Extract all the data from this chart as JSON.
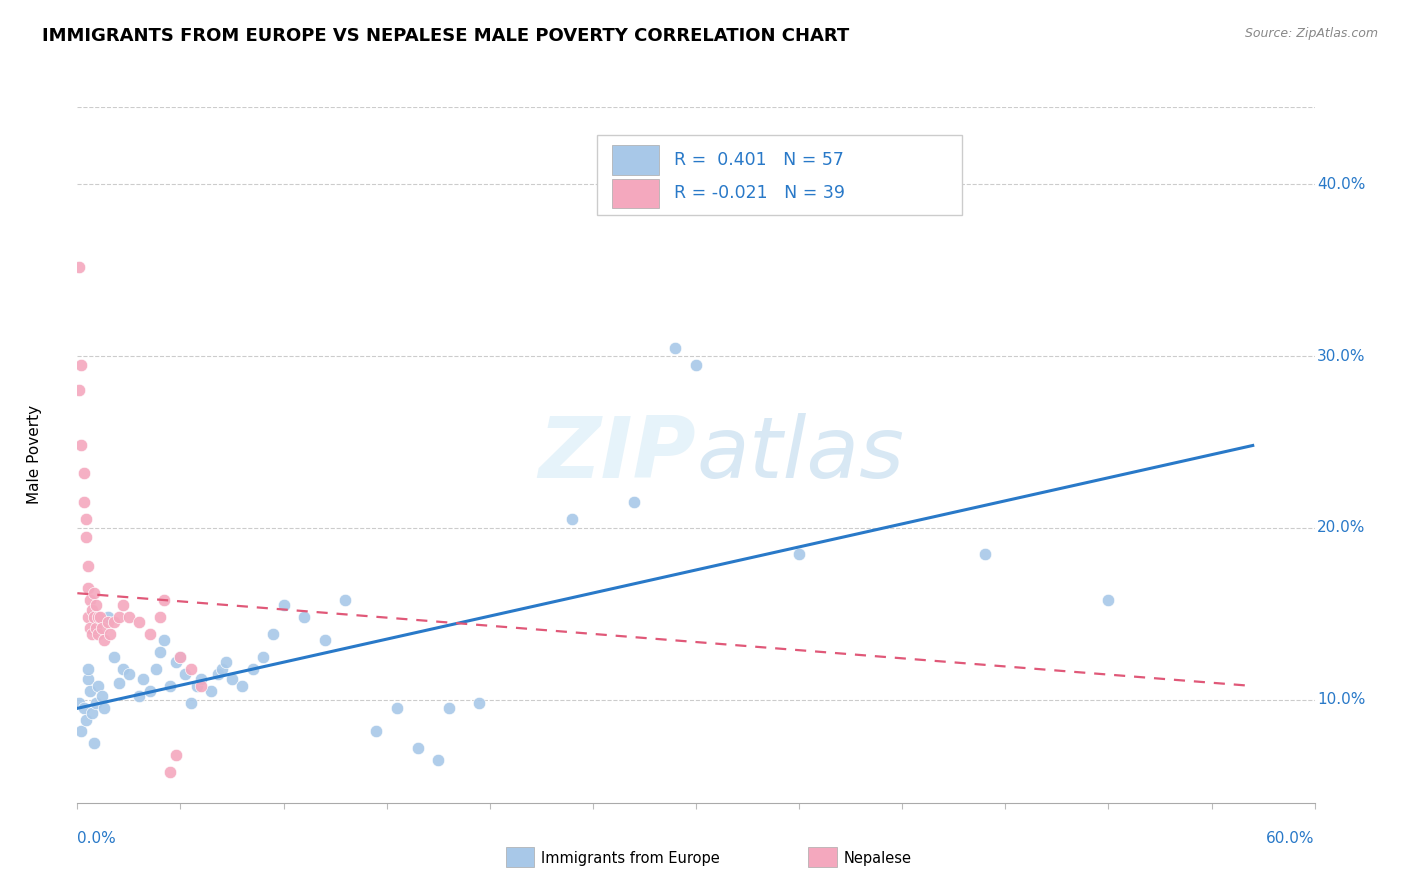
{
  "title": "IMMIGRANTS FROM EUROPE VS NEPALESE MALE POVERTY CORRELATION CHART",
  "source": "Source: ZipAtlas.com",
  "ylabel": "Male Poverty",
  "ylabel_right_ticks": [
    "10.0%",
    "20.0%",
    "30.0%",
    "40.0%"
  ],
  "ylabel_right_vals": [
    0.1,
    0.2,
    0.3,
    0.4
  ],
  "xlim": [
    0.0,
    0.6
  ],
  "ylim": [
    0.04,
    0.445
  ],
  "watermark": "ZIPatlas",
  "blue_color": "#a8c8e8",
  "pink_color": "#f4a8be",
  "blue_line_color": "#2979c8",
  "pink_line_color": "#e05878",
  "blue_scatter": [
    [
      0.001,
      0.098
    ],
    [
      0.002,
      0.082
    ],
    [
      0.003,
      0.095
    ],
    [
      0.004,
      0.088
    ],
    [
      0.005,
      0.112
    ],
    [
      0.005,
      0.118
    ],
    [
      0.006,
      0.105
    ],
    [
      0.007,
      0.092
    ],
    [
      0.008,
      0.075
    ],
    [
      0.009,
      0.098
    ],
    [
      0.01,
      0.108
    ],
    [
      0.012,
      0.102
    ],
    [
      0.013,
      0.095
    ],
    [
      0.015,
      0.148
    ],
    [
      0.018,
      0.125
    ],
    [
      0.02,
      0.11
    ],
    [
      0.022,
      0.118
    ],
    [
      0.025,
      0.115
    ],
    [
      0.03,
      0.102
    ],
    [
      0.032,
      0.112
    ],
    [
      0.035,
      0.105
    ],
    [
      0.038,
      0.118
    ],
    [
      0.04,
      0.128
    ],
    [
      0.042,
      0.135
    ],
    [
      0.045,
      0.108
    ],
    [
      0.048,
      0.122
    ],
    [
      0.05,
      0.125
    ],
    [
      0.052,
      0.115
    ],
    [
      0.055,
      0.098
    ],
    [
      0.058,
      0.108
    ],
    [
      0.06,
      0.112
    ],
    [
      0.065,
      0.105
    ],
    [
      0.068,
      0.115
    ],
    [
      0.07,
      0.118
    ],
    [
      0.072,
      0.122
    ],
    [
      0.075,
      0.112
    ],
    [
      0.08,
      0.108
    ],
    [
      0.085,
      0.118
    ],
    [
      0.09,
      0.125
    ],
    [
      0.095,
      0.138
    ],
    [
      0.1,
      0.155
    ],
    [
      0.11,
      0.148
    ],
    [
      0.12,
      0.135
    ],
    [
      0.13,
      0.158
    ],
    [
      0.145,
      0.082
    ],
    [
      0.155,
      0.095
    ],
    [
      0.165,
      0.072
    ],
    [
      0.175,
      0.065
    ],
    [
      0.18,
      0.095
    ],
    [
      0.195,
      0.098
    ],
    [
      0.24,
      0.205
    ],
    [
      0.27,
      0.215
    ],
    [
      0.29,
      0.305
    ],
    [
      0.3,
      0.295
    ],
    [
      0.35,
      0.185
    ],
    [
      0.44,
      0.185
    ],
    [
      0.5,
      0.158
    ]
  ],
  "pink_scatter": [
    [
      0.001,
      0.352
    ],
    [
      0.001,
      0.28
    ],
    [
      0.002,
      0.248
    ],
    [
      0.002,
      0.295
    ],
    [
      0.003,
      0.215
    ],
    [
      0.003,
      0.232
    ],
    [
      0.004,
      0.195
    ],
    [
      0.004,
      0.205
    ],
    [
      0.005,
      0.178
    ],
    [
      0.005,
      0.165
    ],
    [
      0.005,
      0.148
    ],
    [
      0.006,
      0.158
    ],
    [
      0.006,
      0.142
    ],
    [
      0.007,
      0.152
    ],
    [
      0.007,
      0.138
    ],
    [
      0.008,
      0.162
    ],
    [
      0.008,
      0.148
    ],
    [
      0.009,
      0.155
    ],
    [
      0.009,
      0.142
    ],
    [
      0.01,
      0.148
    ],
    [
      0.01,
      0.138
    ],
    [
      0.011,
      0.148
    ],
    [
      0.012,
      0.142
    ],
    [
      0.013,
      0.135
    ],
    [
      0.015,
      0.145
    ],
    [
      0.016,
      0.138
    ],
    [
      0.018,
      0.145
    ],
    [
      0.02,
      0.148
    ],
    [
      0.022,
      0.155
    ],
    [
      0.025,
      0.148
    ],
    [
      0.03,
      0.145
    ],
    [
      0.035,
      0.138
    ],
    [
      0.04,
      0.148
    ],
    [
      0.042,
      0.158
    ],
    [
      0.045,
      0.058
    ],
    [
      0.048,
      0.068
    ],
    [
      0.05,
      0.125
    ],
    [
      0.055,
      0.118
    ],
    [
      0.06,
      0.108
    ]
  ],
  "blue_trendline": [
    [
      0.0,
      0.095
    ],
    [
      0.57,
      0.248
    ]
  ],
  "pink_trendline": [
    [
      0.0,
      0.162
    ],
    [
      0.57,
      0.108
    ]
  ]
}
